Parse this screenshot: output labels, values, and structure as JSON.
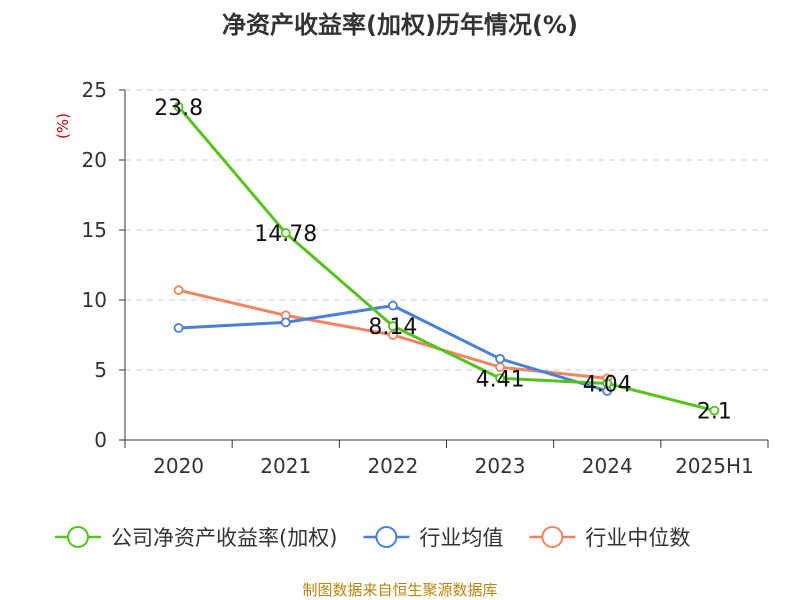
{
  "chart_data": {
    "type": "line",
    "title": "净资产收益率(加权)历年情况(%)",
    "ylabel": "(%)",
    "xlabel": "",
    "categories": [
      "2020",
      "2021",
      "2022",
      "2023",
      "2024",
      "2025H1"
    ],
    "y_ticks": [
      "0",
      "5",
      "10",
      "15",
      "20",
      "25"
    ],
    "ylim": [
      0,
      25
    ],
    "grid": "horizontal-dashed",
    "legend_position": "bottom",
    "series": [
      {
        "name": "公司净资产收益率(加权)",
        "color": "#52c41a",
        "values": [
          23.8,
          14.78,
          8.14,
          4.41,
          4.04,
          2.1
        ],
        "labels": [
          "23.8",
          "14.78",
          "8.14",
          "4.41",
          "4.04",
          "2.1"
        ]
      },
      {
        "name": "行业均值",
        "color": "#4a7fdc",
        "values": [
          8.0,
          8.4,
          9.6,
          5.8,
          3.5,
          null
        ],
        "labels": []
      },
      {
        "name": "行业中位数",
        "color": "#f4845f",
        "values": [
          10.7,
          8.9,
          7.5,
          5.2,
          4.4,
          null
        ],
        "labels": []
      }
    ],
    "source": "制图数据来自恒生聚源数据库"
  }
}
